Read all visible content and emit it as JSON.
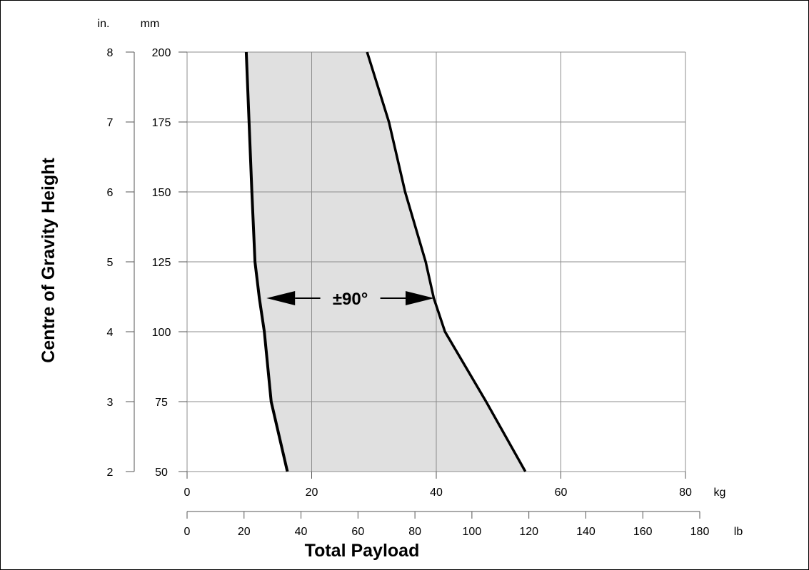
{
  "chart_data": {
    "type": "area",
    "title": "",
    "xlabel": "Total Payload",
    "ylabel": "Centre of Gravity Height",
    "grid": true,
    "x_axes": [
      {
        "unit": "kg",
        "range": [
          0,
          80
        ],
        "ticks": [
          0,
          20,
          40,
          60,
          80
        ],
        "tick_labels": [
          "0",
          "20",
          "40",
          "60",
          "80"
        ]
      },
      {
        "unit": "lb",
        "range": [
          0,
          180
        ],
        "ticks": [
          0,
          20,
          40,
          60,
          80,
          100,
          120,
          140,
          160,
          180
        ],
        "tick_labels": [
          "0",
          "20",
          "40",
          "60",
          "80",
          "100",
          "120",
          "140",
          "160",
          "180"
        ]
      }
    ],
    "y_axes": [
      {
        "unit": "in.",
        "range": [
          2,
          8
        ],
        "ticks": [
          2,
          3,
          4,
          5,
          6,
          7,
          8
        ],
        "tick_labels": [
          "2",
          "3",
          "4",
          "5",
          "6",
          "7",
          "8"
        ]
      },
      {
        "unit": "mm",
        "range": [
          50,
          200
        ],
        "ticks": [
          50,
          75,
          100,
          125,
          150,
          175,
          200
        ],
        "tick_labels": [
          "50",
          "75",
          "100",
          "125",
          "150",
          "175",
          "200"
        ]
      }
    ],
    "series": [
      {
        "x_kg": [
          16.1,
          13.5,
          12.4,
          11.6,
          10.9,
          10.4,
          9.5
        ],
        "y_mm": [
          50,
          75,
          100,
          112,
          125,
          150,
          200
        ]
      },
      {
        "x_kg": [
          54.3,
          48.0,
          41.4,
          39.6,
          38.3,
          35.0,
          32.4,
          28.9
        ],
        "y_mm": [
          50,
          75,
          100,
          112,
          125,
          150,
          175,
          200
        ]
      }
    ],
    "shaded_band": {
      "between": "series",
      "color": "#e0e0e0"
    },
    "annotation": {
      "text": "±90°",
      "y_mm": 112,
      "x_from_kg": 12.4,
      "x_to_kg": 40.0
    }
  }
}
